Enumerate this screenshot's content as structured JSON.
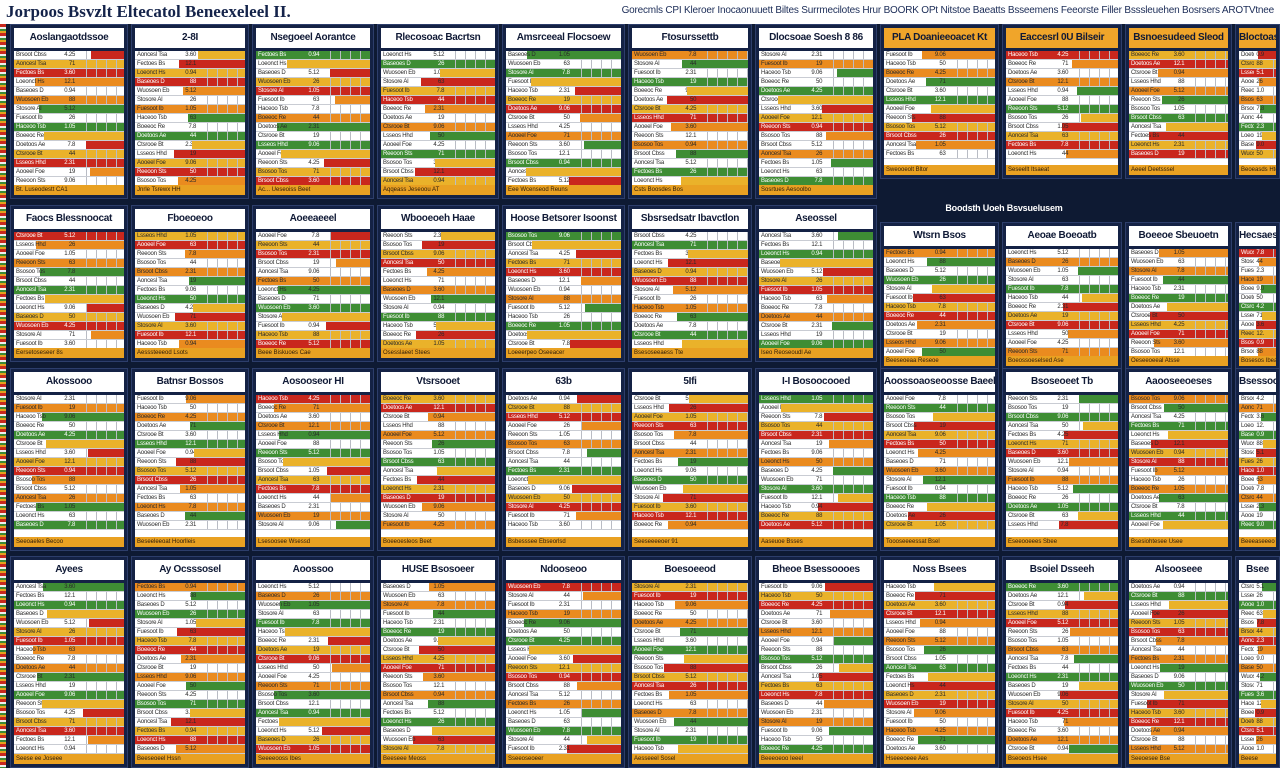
{
  "header": {
    "title": "Jorpoos Bsvzlt Eltecatol Beneexeleel II.",
    "tagline": "Gorecmls CPI Kleroer Inocaonuuett Biltes Surrmecilotes Hrur BOORK OPt Nitstoe Baeatts Bsseemens Feeorste Filler Bsssleuehen Bosrsers AROTVtnee"
  },
  "section_label": "Boodsth Uoeh Bsvsuelusem",
  "colors": {
    "red": "#c9271d",
    "orange": "#ea8b1f",
    "green": "#3e8d34",
    "yellow": "#eab22a",
    "navy": "#0e1a33"
  },
  "panels": [
    {
      "title": "Aoslangaotdssoe",
      "footer": "Bt. Luseodestt CA1"
    },
    {
      "title": "2-8I",
      "footer": "Jnrle Tsrewx HH"
    },
    {
      "title": "Nsegoeel Aorantce",
      "footer": "Ac... Ueseoiss Beet"
    },
    {
      "title": "Rlecosoac Bacrtsn",
      "footer": "Aqqeass Jeseoou AT"
    },
    {
      "title": "Amsrceeal Flocsoew",
      "footer": "Eee Wcenseod Reuns"
    },
    {
      "title": "Ftosurssettb",
      "footer": "Csts Boosdes Bos"
    },
    {
      "title": "Dlocsoae Soesh 8 86",
      "footer": "Sosrtues Aesoolbo"
    },
    {
      "title": "PLA Doanieeoacet Kt",
      "footer": "Sweooeolt Bltor"
    },
    {
      "title": "Eaccesrl 0U Bilseir",
      "footer": "Seseellt Itsaeat"
    },
    {
      "title": "Bsnoesudeed Sleod",
      "footer": "Aeeel Deetsssel"
    },
    {
      "title": "Bloctoasooe",
      "footer": "Beoeasds Hteo"
    },
    {
      "title": "Faocs Blessnoocat",
      "footer": "Eersetoseseer 8s"
    },
    {
      "title": "Fboeoeoo",
      "footer": "Aesssteeeod Lsots"
    },
    {
      "title": "Aoeeaeeel",
      "footer": "Beee Biskuoes Cae"
    },
    {
      "title": "Wbooeoeh Haae",
      "footer": "Osesslaeet Stees"
    },
    {
      "title": "Hoose Betsorer Isoonst",
      "footer": "Loeeerpeo Oseeacer"
    },
    {
      "title": "Sbsrsedsatr Ibavctlon",
      "footer": "Bsesoseeaess Tte"
    },
    {
      "title": "Aseossel",
      "footer": "Iseo Reoseoudl Ae"
    },
    {
      "title": "Wtsrn Bsos",
      "footer": "Beeseoeaa Reseoe"
    },
    {
      "title": "Aeoae Boeoatb",
      "footer": "Boeossoeselsed Ase"
    },
    {
      "title": "Boeeoe Sbeuoetn",
      "footer": "Oeseeoeeal Atsse"
    },
    {
      "title": "Hecsaesh H",
      "footer": "Bosesos Ibeacot"
    },
    {
      "title": "Akossooo",
      "footer": "Seeoaeles Becoo"
    },
    {
      "title": "Batnsr Bossos",
      "footer": "Beseeleeoat Hoorlleis"
    },
    {
      "title": "Aosooseor HI",
      "footer": "Lsesoosee Wsessd"
    },
    {
      "title": "Vtsrsooet",
      "footer": "Boeeoesleos Beet"
    },
    {
      "title": "63b",
      "footer": "Bsbesssee Ebseorlsd"
    },
    {
      "title": "5Ifi",
      "footer": "Seeseeeeoer 91"
    },
    {
      "title": "I-I Bosoocooed",
      "footer": "Aaseuoe Bsses"
    },
    {
      "title": "Aoossoaoseoosse Baeele",
      "footer": "Toooseeeessat Bsel"
    },
    {
      "title": "Bsoseoeet Tb",
      "footer": "Eseeooeees Sbee"
    },
    {
      "title": "Aaooseeoeses",
      "footer": "Bsesiohtesee Usee"
    },
    {
      "title": "Bsessoooce",
      "footer": "Beeeaseeeo"
    },
    {
      "title": "Ayees",
      "footer": "Seese ee Joseee"
    },
    {
      "title": "Ay Ocsssosel",
      "footer": "Beeseoeel Hssn"
    },
    {
      "title": "Aoossoo",
      "footer": "Seeeeooss Ibes"
    },
    {
      "title": "HUSE Bsosoeer",
      "footer": "Beeseee Meoss"
    },
    {
      "title": "Ndooseoo",
      "footer": "Sseeoseoeer"
    },
    {
      "title": "Boesoeeod",
      "footer": "Aesseeel Sosel"
    },
    {
      "title": "Bheoe Bsessoooes",
      "footer": "Beeeoeoo Ieeel"
    },
    {
      "title": "Noss Bsees",
      "footer": "Hseeeoeee Aes"
    },
    {
      "title": "Bsoiel Dsseeh",
      "footer": "Bseoeos Hsee"
    },
    {
      "title": "Alsooseee",
      "footer": "Seeoesee Bse"
    },
    {
      "title": "Bsee",
      "footer": "Beese"
    }
  ],
  "row_labels": [
    "Brsoot Cbss",
    "Aoncesl Tsa",
    "Fectoes Bs",
    "Loeonct Hs",
    "Baseoes D",
    "Wuosoen Eb",
    "Stosore Al",
    "Fuesoot Ib",
    "Haceoo Tsb",
    "Boeeoc Re",
    "Doetoos Ae",
    "Ctsrooe Bt",
    "Lsseos Hhd",
    "Aooeel Foe",
    "Reeoon Sts",
    "Bsosoo Tos"
  ],
  "row_values": [
    "4.25",
    "71",
    "3.60",
    "12.1",
    "0.94",
    "88",
    "5.12",
    "26",
    "1.05",
    "63",
    "7.8",
    "44",
    "2.31",
    "19",
    "9.06",
    "50"
  ]
}
